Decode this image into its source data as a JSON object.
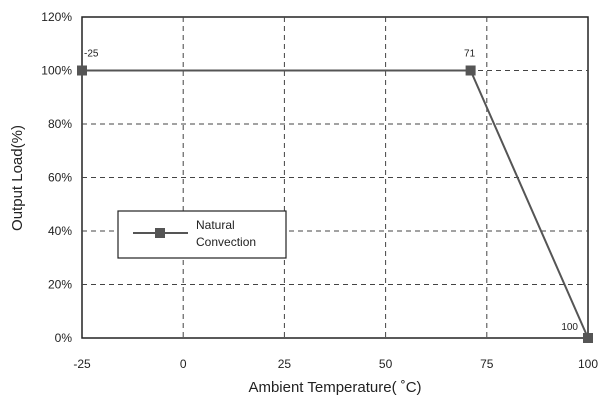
{
  "chart_data": {
    "type": "line",
    "xlabel": "Ambient Temperature( ˚C)",
    "ylabel": "Output Load(%)",
    "xlim": [
      -25,
      100
    ],
    "ylim": [
      0,
      120
    ],
    "x_ticks": [
      -25,
      0,
      25,
      50,
      75,
      100
    ],
    "x_tick_labels": [
      "-25",
      "0",
      "25",
      "50",
      "75",
      "100"
    ],
    "y_ticks": [
      0,
      20,
      40,
      60,
      80,
      100,
      120
    ],
    "y_tick_labels": [
      "0%",
      "20%",
      "40%",
      "60%",
      "80%",
      "100%",
      "120%"
    ],
    "grid": true,
    "legend_position": "middle-left",
    "series": [
      {
        "name": "Natural Convection",
        "x": [
          -25,
          71,
          100
        ],
        "y": [
          100,
          100,
          0
        ],
        "point_labels": [
          "-25",
          "71",
          "100"
        ],
        "color": "#555555"
      }
    ]
  },
  "legend": {
    "line1": "Natural",
    "line2": "Convection"
  }
}
